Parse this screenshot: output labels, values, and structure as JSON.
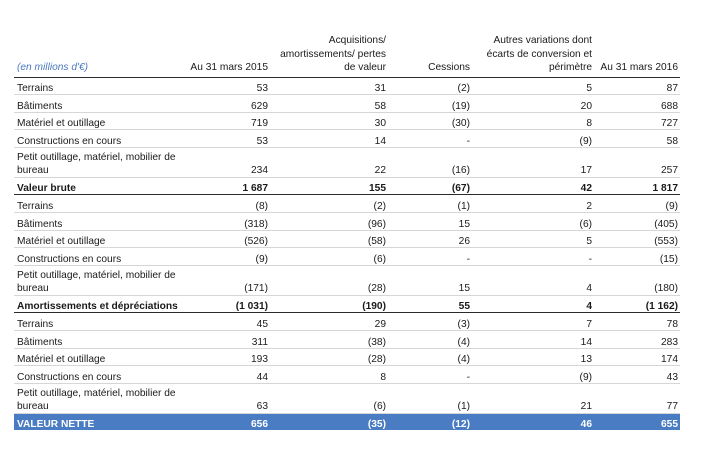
{
  "table": {
    "unit_label": "(en millions d'€)",
    "columns": [
      "Au 31 mars 2015",
      "Acquisitions/ amortissements/ pertes de valeur",
      "Cessions",
      "Autres variations dont écarts de conversion et périmètre",
      "Au 31 mars 2016"
    ],
    "sections": [
      {
        "rows": [
          {
            "label": "Terrains",
            "values": [
              "53",
              "31",
              "(2)",
              "5",
              "87"
            ]
          },
          {
            "label": "Bâtiments",
            "values": [
              "629",
              "58",
              "(19)",
              "20",
              "688"
            ]
          },
          {
            "label": "Matériel et outillage",
            "values": [
              "719",
              "30",
              "(30)",
              "8",
              "727"
            ]
          },
          {
            "label": "Constructions en cours",
            "values": [
              "53",
              "14",
              "-",
              "(9)",
              "58"
            ]
          },
          {
            "label": "Petit outillage, matériel, mobilier de bureau",
            "values": [
              "234",
              "22",
              "(16)",
              "17",
              "257"
            ]
          }
        ],
        "total": {
          "label": "Valeur brute",
          "values": [
            "1 687",
            "155",
            "(67)",
            "42",
            "1 817"
          ]
        }
      },
      {
        "rows": [
          {
            "label": "Terrains",
            "values": [
              "(8)",
              "(2)",
              "(1)",
              "2",
              "(9)"
            ]
          },
          {
            "label": "Bâtiments",
            "values": [
              "(318)",
              "(96)",
              "15",
              "(6)",
              "(405)"
            ]
          },
          {
            "label": "Matériel et outillage",
            "values": [
              "(526)",
              "(58)",
              "26",
              "5",
              "(553)"
            ]
          },
          {
            "label": "Constructions en cours",
            "values": [
              "(9)",
              "(6)",
              "-",
              "-",
              "(15)"
            ]
          },
          {
            "label": "Petit outillage, matériel, mobilier de bureau",
            "values": [
              "(171)",
              "(28)",
              "15",
              "4",
              "(180)"
            ]
          }
        ],
        "total": {
          "label": "Amortissements et dépréciations",
          "values": [
            "(1 031)",
            "(190)",
            "55",
            "4",
            "(1 162)"
          ]
        }
      },
      {
        "rows": [
          {
            "label": "Terrains",
            "values": [
              "45",
              "29",
              "(3)",
              "7",
              "78"
            ]
          },
          {
            "label": "Bâtiments",
            "values": [
              "311",
              "(38)",
              "(4)",
              "14",
              "283"
            ]
          },
          {
            "label": "Matériel et outillage",
            "values": [
              "193",
              "(28)",
              "(4)",
              "13",
              "174"
            ]
          },
          {
            "label": "Constructions en cours",
            "values": [
              "44",
              "8",
              "-",
              "(9)",
              "43"
            ]
          },
          {
            "label": "Petit outillage, matériel, mobilier de bureau",
            "values": [
              "63",
              "(6)",
              "(1)",
              "21",
              "77"
            ]
          }
        ],
        "net": {
          "label": "VALEUR NETTE",
          "values": [
            "656",
            "(35)",
            "(12)",
            "46",
            "655"
          ]
        }
      }
    ]
  }
}
